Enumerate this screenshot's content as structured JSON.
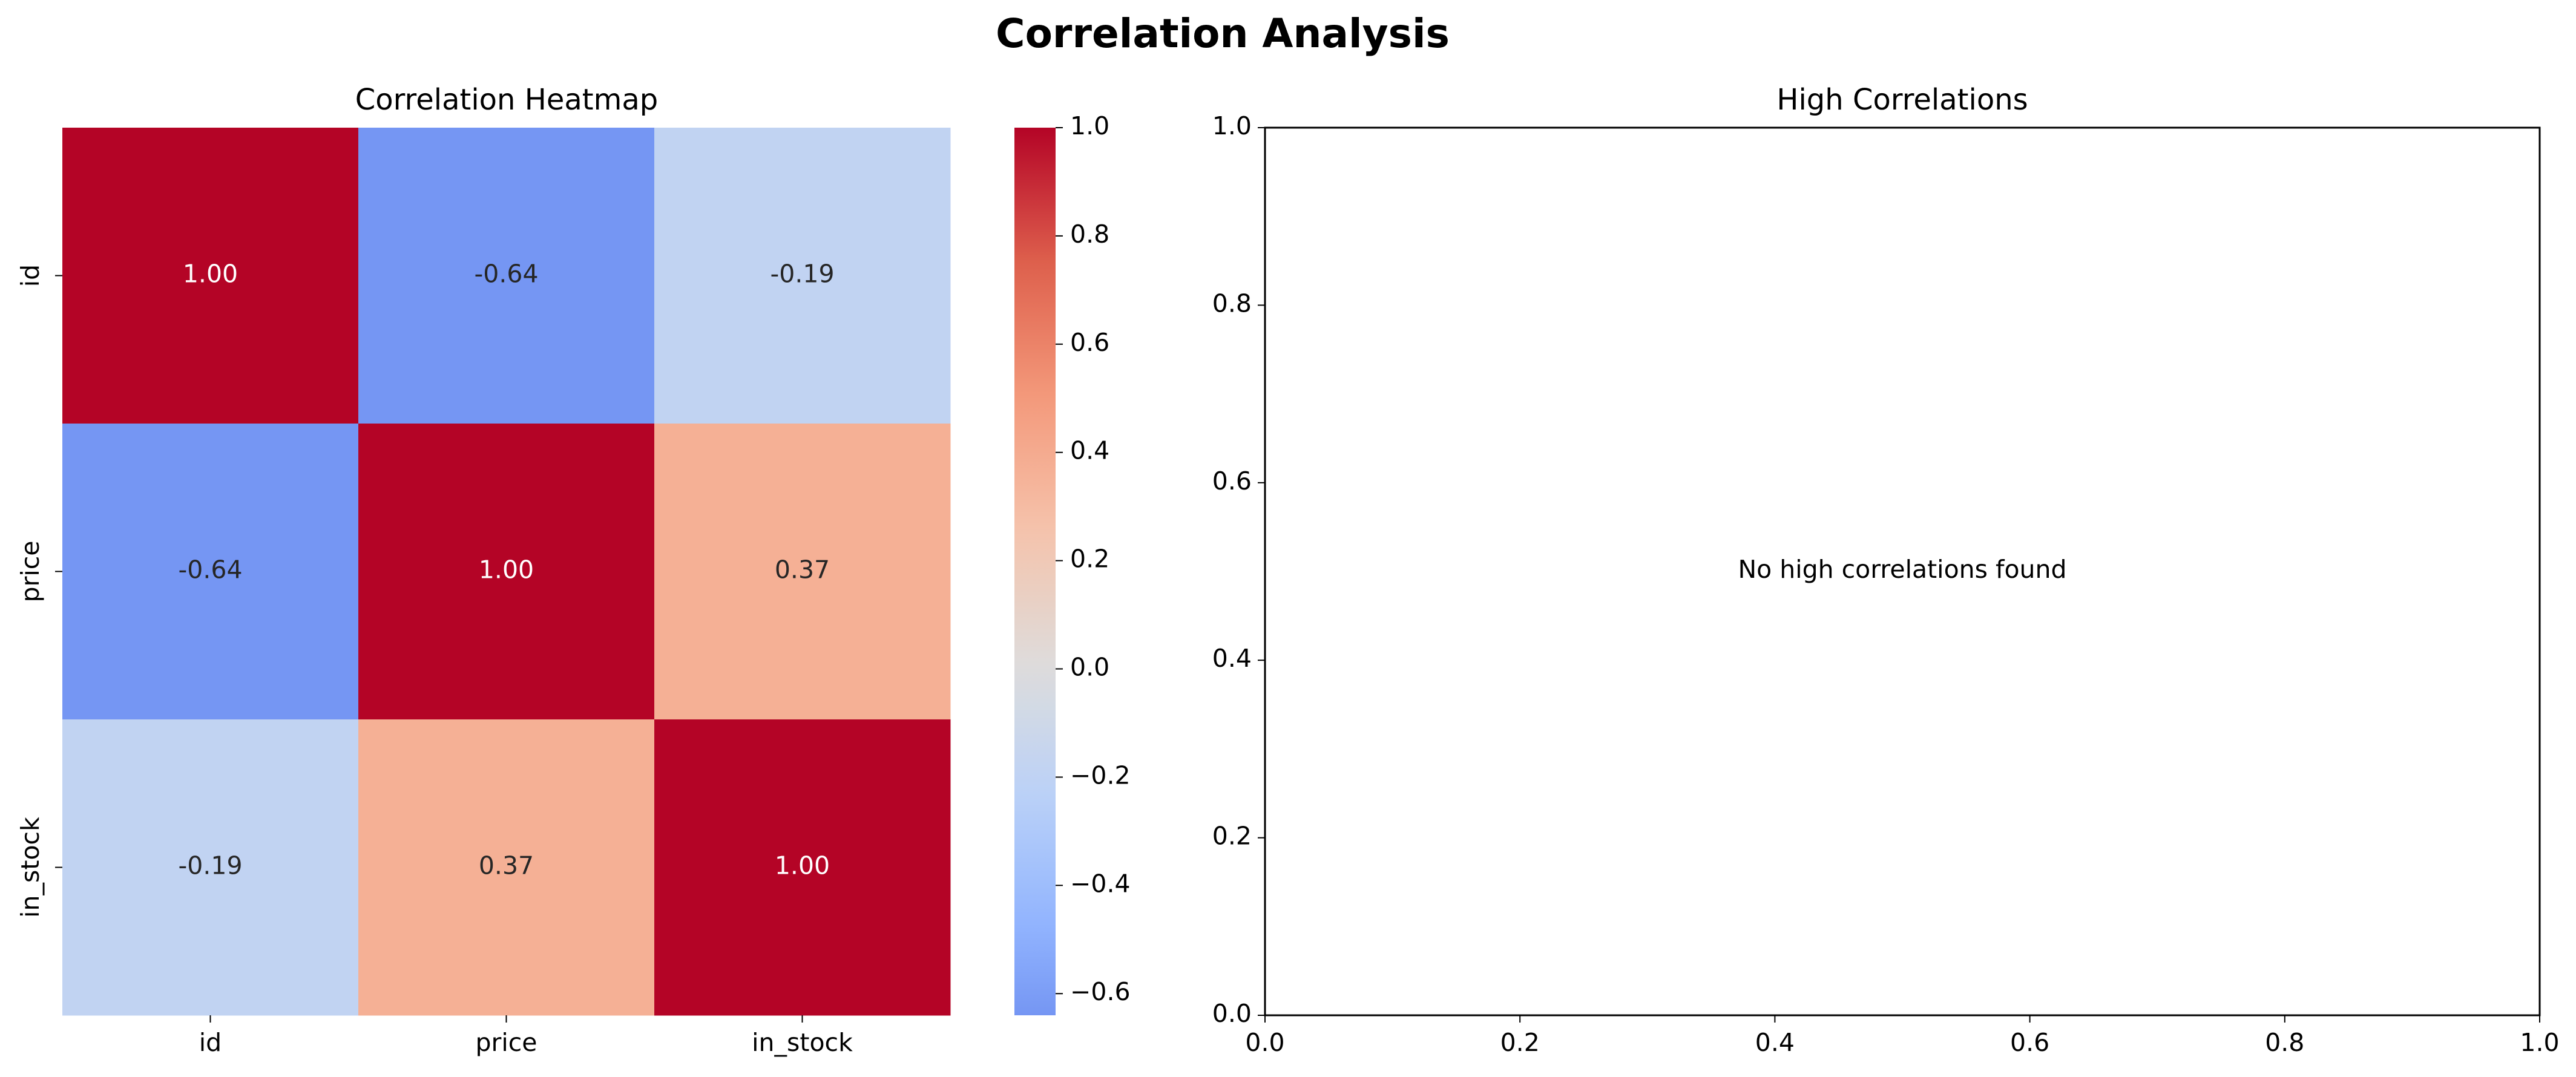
{
  "figure": {
    "title": "Correlation Analysis"
  },
  "chart_data": [
    {
      "type": "heatmap",
      "title": "Correlation Heatmap",
      "xlabel": "",
      "ylabel": "",
      "x_categories": [
        "id",
        "price",
        "in_stock"
      ],
      "y_categories": [
        "id",
        "price",
        "in_stock"
      ],
      "values": [
        [
          1.0,
          -0.64,
          -0.19
        ],
        [
          -0.64,
          1.0,
          0.37
        ],
        [
          -0.19,
          0.37,
          1.0
        ]
      ],
      "annotations": [
        [
          "1.00",
          "-0.64",
          "-0.19"
        ],
        [
          "-0.64",
          "1.00",
          "0.37"
        ],
        [
          "-0.19",
          "0.37",
          "1.00"
        ]
      ],
      "colormap": "coolwarm",
      "colorbar": {
        "range": [
          -0.64,
          1.0
        ],
        "colormap_center": 0,
        "ticks": [
          1.0,
          0.8,
          0.6,
          0.4,
          0.2,
          0.0,
          -0.2,
          -0.4,
          -0.6
        ],
        "tick_labels": [
          "1.0",
          "0.8",
          "0.6",
          "0.4",
          "0.2",
          "0.0",
          "−0.2",
          "−0.4",
          "−0.6"
        ]
      }
    },
    {
      "type": "scatter",
      "title": "High Correlations",
      "xlabel": "",
      "ylabel": "",
      "series": [],
      "xlim": [
        0,
        1
      ],
      "ylim": [
        0,
        1
      ],
      "x_ticks": [
        "0.0",
        "0.2",
        "0.4",
        "0.6",
        "0.8",
        "1.0"
      ],
      "y_ticks": [
        "0.0",
        "0.2",
        "0.4",
        "0.6",
        "0.8",
        "1.0"
      ],
      "annotation": "No high correlations found",
      "grid": false
    }
  ]
}
